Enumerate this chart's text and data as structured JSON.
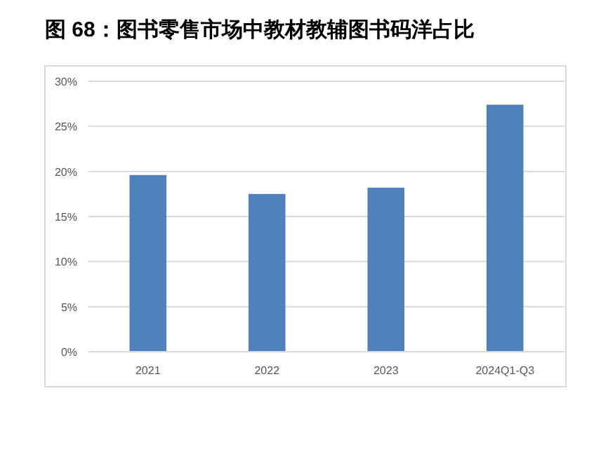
{
  "chart_data": {
    "type": "bar",
    "title": "图 68：图书零售市场中教材教辅图书码洋占比",
    "categories": [
      "2021",
      "2022",
      "2023",
      "2024Q1-Q3"
    ],
    "values": [
      19.6,
      17.5,
      18.2,
      27.4
    ],
    "color": "#4f81bd",
    "ylim": [
      0,
      30
    ],
    "yticks": [
      {
        "value": 0,
        "label": "0%"
      },
      {
        "value": 5,
        "label": "5%"
      },
      {
        "value": 10,
        "label": "10%"
      },
      {
        "value": 15,
        "label": "15%"
      },
      {
        "value": 20,
        "label": "20%"
      },
      {
        "value": 25,
        "label": "25%"
      },
      {
        "value": 30,
        "label": "30%"
      }
    ],
    "grid": "y"
  }
}
